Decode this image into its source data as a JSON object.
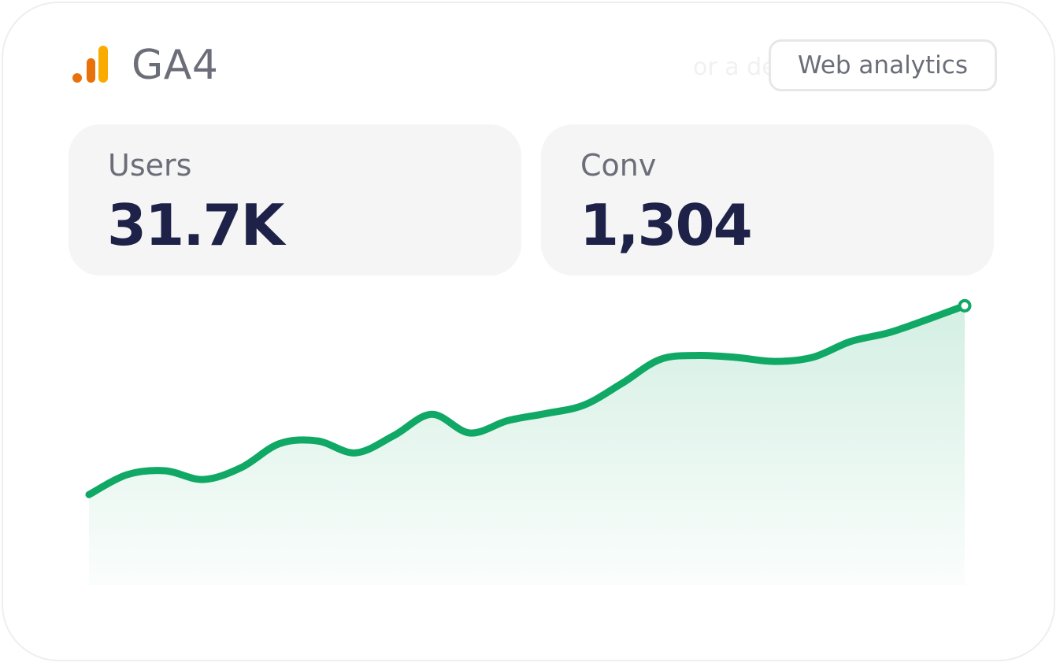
{
  "header": {
    "title": "GA4",
    "badge_label": "Web analytics",
    "ghost_text": "or a demo"
  },
  "stats": [
    {
      "label": "Users",
      "value": "31.7K"
    },
    {
      "label": "Conv",
      "value": "1,304"
    }
  ],
  "colors": {
    "line": "#10a865",
    "logo_orange": "#e8710a",
    "logo_yellow": "#f9ab00",
    "value_text": "#1e2248",
    "label_text": "#6b6e78"
  },
  "chart_data": {
    "type": "area",
    "title": "",
    "xlabel": "",
    "ylabel": "",
    "values": [
      0,
      0.5,
      0.6,
      0.38,
      0.68,
      1.28,
      1.35,
      1.05,
      1.48,
      2.02,
      1.55,
      1.86,
      2.04,
      2.25,
      2.8,
      3.4,
      3.5,
      3.45,
      3.35,
      3.45,
      3.85,
      4.07,
      4.4,
      4.75
    ],
    "ylim": [
      -3.4,
      6.5
    ],
    "grid": false,
    "end_marker": true
  }
}
